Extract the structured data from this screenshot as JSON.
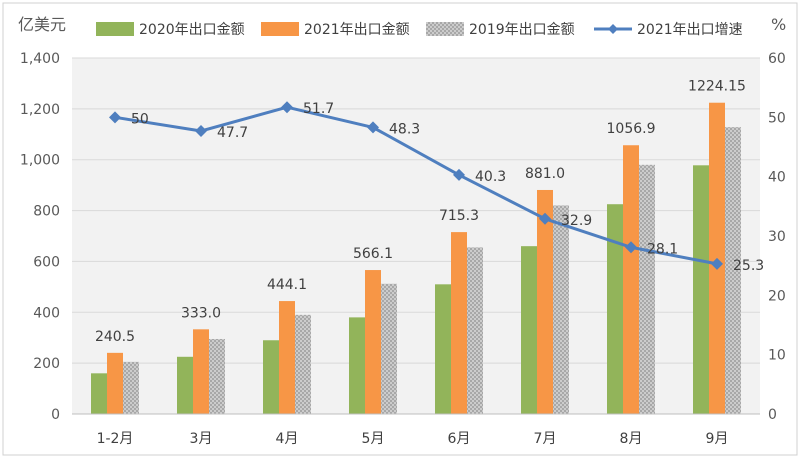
{
  "chart_data": {
    "type": "bar",
    "combo": "bar+line",
    "categories": [
      "1-2月",
      "3月",
      "4月",
      "5月",
      "6月",
      "7月",
      "8月",
      "9月"
    ],
    "left_axis_label": "亿美元",
    "right_axis_label": "%",
    "ylim_left": [
      0,
      1400
    ],
    "ylim_right": [
      0,
      60
    ],
    "left_ticks": [
      0,
      200,
      400,
      600,
      800,
      1000,
      1200,
      1400
    ],
    "left_tick_labels": [
      "0",
      "200",
      "400",
      "600",
      "800",
      "1,000",
      "1,200",
      "1,400"
    ],
    "right_ticks": [
      0,
      10,
      20,
      30,
      40,
      50,
      60
    ],
    "right_tick_labels": [
      "0",
      "10",
      "20",
      "30",
      "40",
      "50",
      "60"
    ],
    "grid": true,
    "legend_position": "top",
    "series": [
      {
        "name": "2020年出口金额",
        "type": "bar",
        "axis": "left",
        "color": "#92b45a",
        "values": [
          160,
          225,
          290,
          380,
          510,
          660,
          825,
          978
        ]
      },
      {
        "name": "2021年出口金额",
        "type": "bar",
        "axis": "left",
        "color": "#f79646",
        "values": [
          240.5,
          333.0,
          444.1,
          566.1,
          715.3,
          881.0,
          1056.9,
          1224.15
        ],
        "labels": [
          "240.5",
          "333.0",
          "444.1",
          "566.1",
          "715.3",
          "881.0",
          "1056.9",
          "1224.15"
        ]
      },
      {
        "name": "2019年出口金额",
        "type": "bar",
        "axis": "left",
        "color": "#b0b0b0",
        "pattern": "dots",
        "values": [
          205,
          295,
          390,
          512,
          655,
          820,
          980,
          1128
        ]
      },
      {
        "name": "2021年出口增速",
        "type": "line",
        "axis": "right",
        "color": "#4f7fbf",
        "marker": "diamond",
        "values": [
          50,
          47.7,
          51.7,
          48.3,
          40.3,
          32.9,
          28.1,
          25.3
        ],
        "labels": [
          "50",
          "47.7",
          "51.7",
          "48.3",
          "40.3",
          "32.9",
          "28.1",
          "25.3"
        ]
      }
    ]
  }
}
